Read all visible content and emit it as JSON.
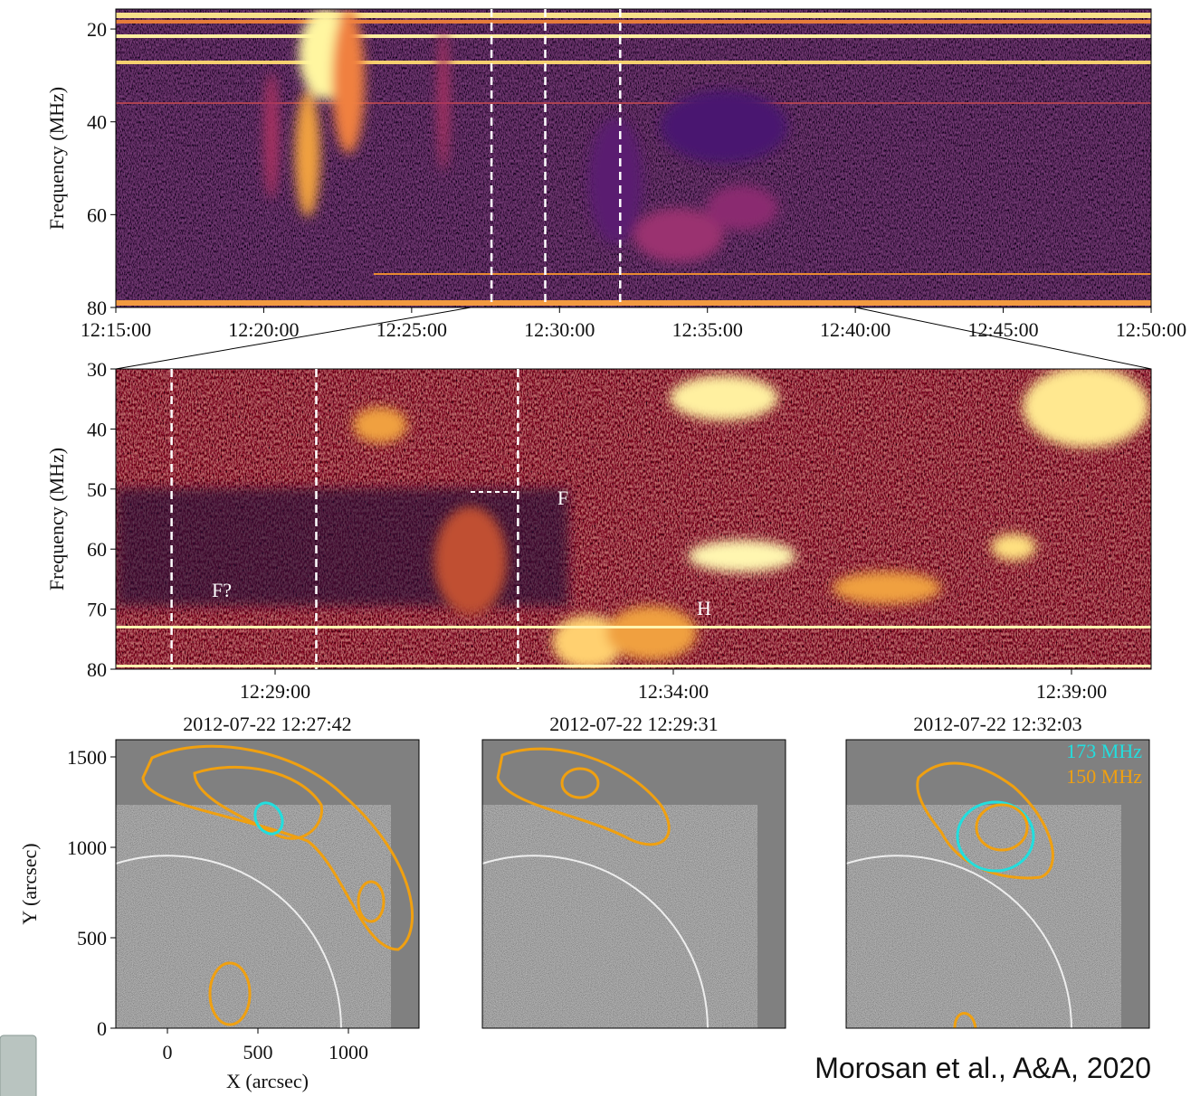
{
  "chart_data": [
    {
      "type": "spectrogram",
      "ylabel": "Frequency (MHz)",
      "xlim": [
        "12:15:00",
        "12:50:00"
      ],
      "xticks": [
        "12:15:00",
        "12:20:00",
        "12:25:00",
        "12:30:00",
        "12:35:00",
        "12:40:00",
        "12:45:00",
        "12:50:00"
      ],
      "ylim": [
        80,
        15.7
      ],
      "yticks": [
        20,
        40,
        60,
        80
      ],
      "markers": [
        "12:27:42",
        "12:29:31",
        "12:32:03"
      ]
    },
    {
      "type": "spectrogram",
      "ylabel": "Frequency (MHz)",
      "xlim": [
        "12:27:00",
        "12:40:00"
      ],
      "xticks": [
        "12:29:00",
        "12:34:00",
        "12:39:00"
      ],
      "ylim": [
        80,
        30
      ],
      "yticks": [
        30,
        40,
        50,
        60,
        70,
        80
      ],
      "markers": [
        "12:27:42",
        "12:29:31",
        "12:32:03"
      ],
      "annotations": [
        "F",
        "F?",
        "H"
      ]
    },
    {
      "type": "image",
      "title": "2012-07-22 12:27:42",
      "xlabel": "X (arcsec)",
      "ylabel": "Y (arcsec)",
      "xlim": [
        -285,
        1390
      ],
      "ylim": [
        0,
        1595
      ],
      "xticks": [
        0,
        500,
        1000
      ],
      "yticks": [
        0,
        500,
        1000,
        1500
      ]
    },
    {
      "type": "image",
      "title": "2012-07-22 12:29:31"
    },
    {
      "type": "image",
      "title": "2012-07-22 12:32:03",
      "legend": [
        {
          "name": "173 MHz",
          "color": "#22dede"
        },
        {
          "name": "150 MHz",
          "color": "#f0a010"
        }
      ]
    }
  ],
  "credit": "Morosan et al., A&A, 2020"
}
